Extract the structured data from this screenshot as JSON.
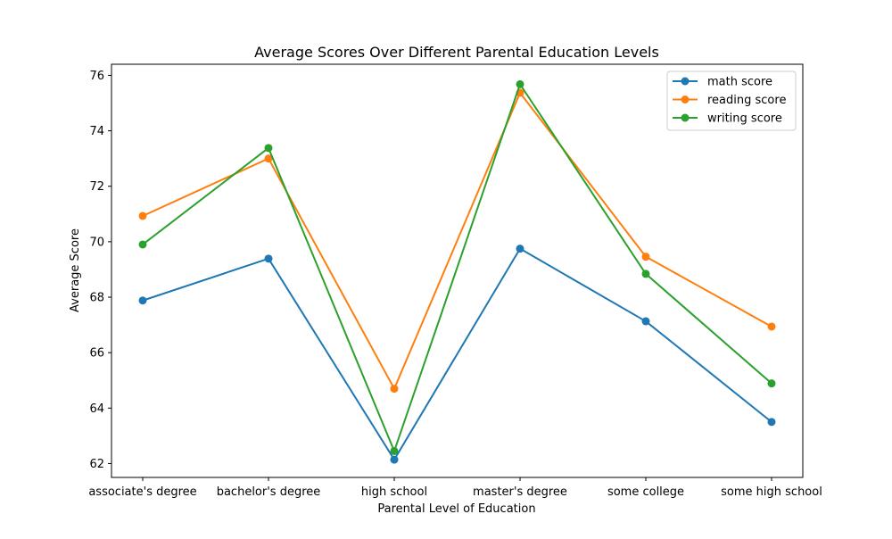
{
  "chart_data": {
    "type": "line",
    "title": "Average Scores Over Different Parental Education Levels",
    "xlabel": "Parental Level of Education",
    "ylabel": "Average Score",
    "categories": [
      "associate's degree",
      "bachelor's degree",
      "high school",
      "master's degree",
      "some college",
      "some high school"
    ],
    "ylim": [
      61.5,
      76.4
    ],
    "yticks": [
      62,
      64,
      66,
      68,
      70,
      72,
      74,
      76
    ],
    "grid": false,
    "legend_position": "top-right",
    "series": [
      {
        "name": "math score",
        "color": "#1f77b4",
        "values": [
          67.88,
          69.39,
          62.14,
          69.75,
          67.13,
          63.5
        ]
      },
      {
        "name": "reading score",
        "color": "#ff7f0e",
        "values": [
          70.93,
          73.0,
          64.7,
          75.37,
          69.46,
          66.94
        ]
      },
      {
        "name": "writing score",
        "color": "#2ca02c",
        "values": [
          69.9,
          73.38,
          62.45,
          75.68,
          68.84,
          64.89
        ]
      }
    ]
  }
}
